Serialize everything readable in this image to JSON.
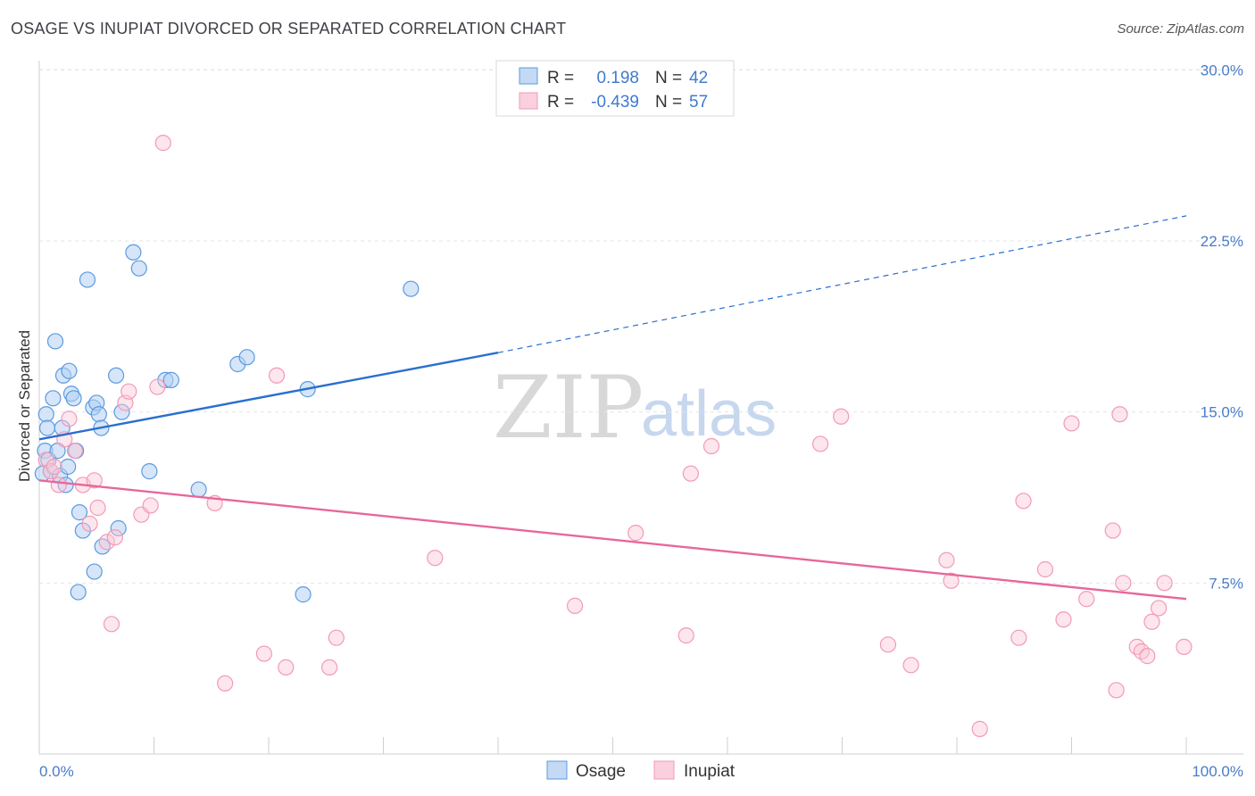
{
  "header": {
    "title": "OSAGE VS INUPIAT DIVORCED OR SEPARATED CORRELATION CHART",
    "source": "Source: ZipAtlas.com"
  },
  "watermark": {
    "zip": "ZIP",
    "atlas": "atlas"
  },
  "legend": {
    "r_label": "R =",
    "n_label": "N =",
    "rows": [
      {
        "series": "Osage",
        "r": "0.198",
        "n": "42",
        "color": "#5b9be0"
      },
      {
        "series": "Inupiat",
        "r": "-0.439",
        "n": "57",
        "color": "#f29ab6"
      }
    ]
  },
  "chart_data": {
    "type": "scatter",
    "title": "OSAGE VS INUPIAT DIVORCED OR SEPARATED CORRELATION CHART",
    "xlabel": "",
    "ylabel": "Divorced or Separated",
    "xlim": [
      0,
      100
    ],
    "ylim": [
      0,
      31
    ],
    "x_tick_labels": [
      "0.0%",
      "100.0%"
    ],
    "y_ticks": [
      7.5,
      15.0,
      22.5,
      30.0
    ],
    "y_tick_labels": [
      "7.5%",
      "15.0%",
      "22.5%",
      "30.0%"
    ],
    "grid": true,
    "series": [
      {
        "name": "Osage",
        "color": "#5b9be0",
        "trend": {
          "x0": 0,
          "y0": 13.8,
          "x1": 40,
          "y1": 17.6,
          "dash_to_x": 100,
          "dash_to_y": 23.6
        },
        "points": [
          [
            0.3,
            12.3
          ],
          [
            0.5,
            13.3
          ],
          [
            0.6,
            14.9
          ],
          [
            0.7,
            14.3
          ],
          [
            0.8,
            12.9
          ],
          [
            1.0,
            12.4
          ],
          [
            1.2,
            15.6
          ],
          [
            1.4,
            18.1
          ],
          [
            1.6,
            13.3
          ],
          [
            1.8,
            12.2
          ],
          [
            2.0,
            14.3
          ],
          [
            2.1,
            16.6
          ],
          [
            2.3,
            11.8
          ],
          [
            2.5,
            12.6
          ],
          [
            2.6,
            16.8
          ],
          [
            2.8,
            15.8
          ],
          [
            3.0,
            15.6
          ],
          [
            3.2,
            13.3
          ],
          [
            3.5,
            10.6
          ],
          [
            3.4,
            7.1
          ],
          [
            3.8,
            9.8
          ],
          [
            4.2,
            20.8
          ],
          [
            4.7,
            15.2
          ],
          [
            4.8,
            8.0
          ],
          [
            5.0,
            15.4
          ],
          [
            5.2,
            14.9
          ],
          [
            5.4,
            14.3
          ],
          [
            5.5,
            9.1
          ],
          [
            6.7,
            16.6
          ],
          [
            6.9,
            9.9
          ],
          [
            7.2,
            15.0
          ],
          [
            8.2,
            22.0
          ],
          [
            8.7,
            21.3
          ],
          [
            9.6,
            12.4
          ],
          [
            11.0,
            16.4
          ],
          [
            11.5,
            16.4
          ],
          [
            13.9,
            11.6
          ],
          [
            17.3,
            17.1
          ],
          [
            18.1,
            17.4
          ],
          [
            23.0,
            7.0
          ],
          [
            23.4,
            16.0
          ],
          [
            32.4,
            20.4
          ]
        ]
      },
      {
        "name": "Inupiat",
        "color": "#f29ab6",
        "trend": {
          "x0": 0,
          "y0": 12.0,
          "x1": 100,
          "y1": 6.8
        },
        "points": [
          [
            0.6,
            12.9
          ],
          [
            1.0,
            12.4
          ],
          [
            1.3,
            12.6
          ],
          [
            1.7,
            11.8
          ],
          [
            2.2,
            13.8
          ],
          [
            2.6,
            14.7
          ],
          [
            3.1,
            13.3
          ],
          [
            3.8,
            11.8
          ],
          [
            4.4,
            10.1
          ],
          [
            4.8,
            12.0
          ],
          [
            5.1,
            10.8
          ],
          [
            5.9,
            9.3
          ],
          [
            6.3,
            5.7
          ],
          [
            6.6,
            9.5
          ],
          [
            7.5,
            15.4
          ],
          [
            7.8,
            15.9
          ],
          [
            8.9,
            10.5
          ],
          [
            9.7,
            10.9
          ],
          [
            10.3,
            16.1
          ],
          [
            10.8,
            26.8
          ],
          [
            15.3,
            11.0
          ],
          [
            16.2,
            3.1
          ],
          [
            19.6,
            4.4
          ],
          [
            20.7,
            16.6
          ],
          [
            21.5,
            3.8
          ],
          [
            25.3,
            3.8
          ],
          [
            25.9,
            5.1
          ],
          [
            34.5,
            8.6
          ],
          [
            46.7,
            6.5
          ],
          [
            52.0,
            9.7
          ],
          [
            56.4,
            5.2
          ],
          [
            56.8,
            12.3
          ],
          [
            58.6,
            13.5
          ],
          [
            68.1,
            13.6
          ],
          [
            69.9,
            14.8
          ],
          [
            74.0,
            4.8
          ],
          [
            76.0,
            3.9
          ],
          [
            79.1,
            8.5
          ],
          [
            79.5,
            7.6
          ],
          [
            82.0,
            1.1
          ],
          [
            85.4,
            5.1
          ],
          [
            85.8,
            11.1
          ],
          [
            87.7,
            8.1
          ],
          [
            89.3,
            5.9
          ],
          [
            90.0,
            14.5
          ],
          [
            91.3,
            6.8
          ],
          [
            93.6,
            9.8
          ],
          [
            93.9,
            2.8
          ],
          [
            94.2,
            14.9
          ],
          [
            94.5,
            7.5
          ],
          [
            95.7,
            4.7
          ],
          [
            96.1,
            4.5
          ],
          [
            96.6,
            4.3
          ],
          [
            97.0,
            5.8
          ],
          [
            97.6,
            6.4
          ],
          [
            98.1,
            7.5
          ],
          [
            99.8,
            4.7
          ]
        ]
      }
    ]
  }
}
